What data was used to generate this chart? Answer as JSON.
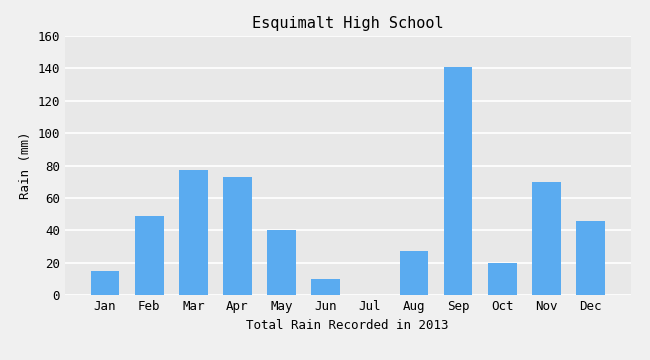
{
  "title": "Esquimalt High School",
  "xlabel": "Total Rain Recorded in 2013",
  "ylabel": "Rain (mm)",
  "categories": [
    "Jan",
    "Feb",
    "Mar",
    "Apr",
    "May",
    "Jun",
    "Jul",
    "Aug",
    "Sep",
    "Oct",
    "Nov",
    "Dec"
  ],
  "values": [
    15,
    49,
    77,
    73,
    40,
    10,
    0,
    27,
    141,
    20,
    70,
    46
  ],
  "bar_color": "#5aabf0",
  "ylim": [
    0,
    160
  ],
  "yticks": [
    0,
    20,
    40,
    60,
    80,
    100,
    120,
    140,
    160
  ],
  "fig_bg_color": "#f0f0f0",
  "plot_bg_color": "#e8e8e8",
  "grid_color": "#ffffff",
  "title_fontsize": 11,
  "label_fontsize": 9,
  "tick_fontsize": 9
}
